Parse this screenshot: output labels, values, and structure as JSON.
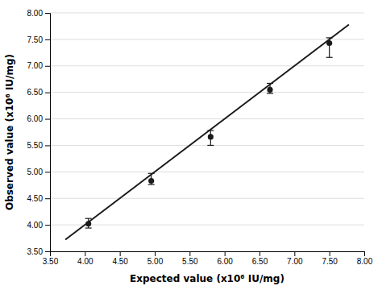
{
  "chart_data": {
    "type": "scatter",
    "xlabel": "Expected value (x10⁶ IU/mg)",
    "ylabel": "Observed value (x10⁶ IU/mg)",
    "xlim": [
      3.5,
      8.0
    ],
    "ylim": [
      3.5,
      8.0
    ],
    "xticks": [
      {
        "value": 3.5,
        "label": "3.50"
      },
      {
        "value": 4.0,
        "label": "4.00"
      },
      {
        "value": 4.5,
        "label": "4.50"
      },
      {
        "value": 5.0,
        "label": "5.00"
      },
      {
        "value": 5.5,
        "label": "5.50"
      },
      {
        "value": 6.0,
        "label": "6.00"
      },
      {
        "value": 6.5,
        "label": "6.50"
      },
      {
        "value": 7.0,
        "label": "7.00"
      },
      {
        "value": 7.5,
        "label": "7.50"
      },
      {
        "value": 8.0,
        "label": "8.00"
      }
    ],
    "yticks": [
      {
        "value": 3.5,
        "label": "3.50"
      },
      {
        "value": 4.0,
        "label": "4.00"
      },
      {
        "value": 4.5,
        "label": "4.50"
      },
      {
        "value": 5.0,
        "label": "5.00"
      },
      {
        "value": 5.5,
        "label": "5.50"
      },
      {
        "value": 6.0,
        "label": "6.00"
      },
      {
        "value": 6.5,
        "label": "6.50"
      },
      {
        "value": 7.0,
        "label": "7.00"
      },
      {
        "value": 7.5,
        "label": "7.50"
      },
      {
        "value": 8.0,
        "label": "8.00"
      }
    ],
    "grid": "y",
    "series": [
      {
        "type": "line",
        "line_style": "solid",
        "color": "#1a1a1a",
        "x": [
          3.72,
          7.78
        ],
        "values": [
          3.72,
          7.78
        ]
      },
      {
        "type": "scatter",
        "marker": "circle",
        "color": "#1a1a1a",
        "x": [
          4.05,
          4.95,
          5.8,
          6.65,
          7.5
        ],
        "values": [
          4.02,
          4.83,
          5.66,
          6.55,
          7.43
        ],
        "error_upper": [
          0.1,
          0.14,
          0.12,
          0.12,
          0.1
        ],
        "error_lower": [
          0.08,
          0.07,
          0.16,
          0.07,
          0.27
        ]
      }
    ]
  }
}
